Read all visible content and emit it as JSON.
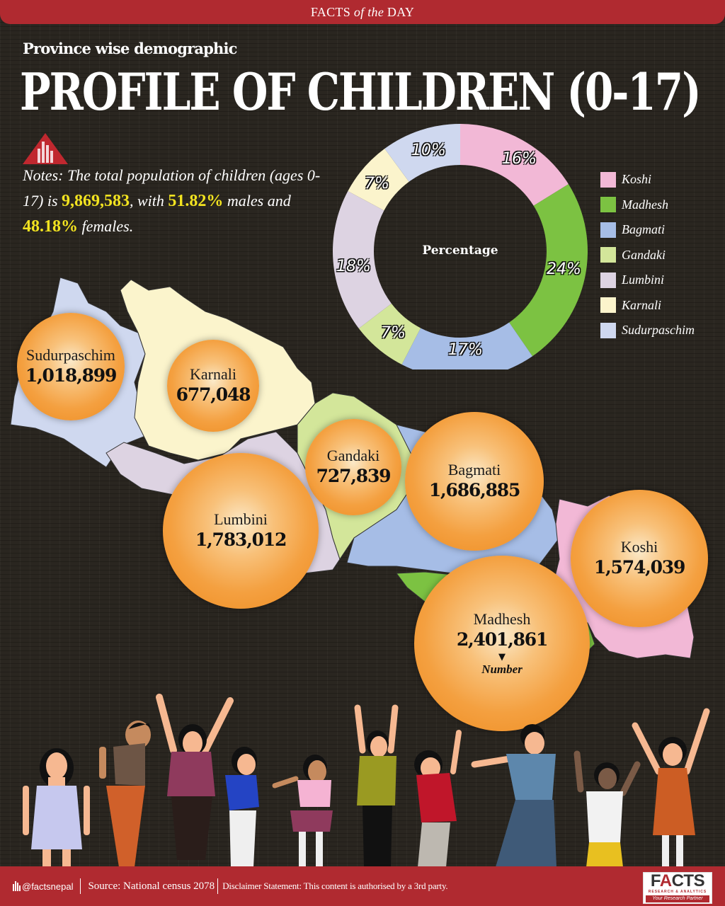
{
  "header": {
    "banner_pre": "FACTS ",
    "banner_italic": "of the",
    "banner_post": " DAY",
    "subtitle": "Province wise demographic",
    "title": "PROFILE OF CHILDREN (0-17)"
  },
  "notes": {
    "text_1": "Notes: The total population of children (ages 0-17) is ",
    "total": "9,869,583",
    "text_2": ", with ",
    "male_pct": "51.82%",
    "text_3": " males and ",
    "female_pct": "48.18%",
    "text_4": " females."
  },
  "donut": {
    "center_label": "Percentage",
    "labels": {
      "koshi": "16%",
      "madhesh": "24%",
      "bagmati": "17%",
      "gandaki": "7%",
      "lumbini": "18%",
      "karnali": "7%",
      "sudurpaschim": "10%"
    }
  },
  "legend": {
    "items": [
      {
        "label": "Koshi",
        "color": "#f2b8d6"
      },
      {
        "label": "Madhesh",
        "color": "#7cc242"
      },
      {
        "label": "Bagmati",
        "color": "#a6bde6"
      },
      {
        "label": "Gandaki",
        "color": "#d3e69a"
      },
      {
        "label": "Lumbini",
        "color": "#ddd3e2"
      },
      {
        "label": "Karnali",
        "color": "#fbf4cc"
      },
      {
        "label": "Sudurpaschim",
        "color": "#cfd8ef"
      }
    ]
  },
  "provinces": {
    "sudurpaschim": {
      "name": "Sudurpaschim",
      "value": "1,018,899"
    },
    "karnali": {
      "name": "Karnali",
      "value": "677,048"
    },
    "gandaki": {
      "name": "Gandaki",
      "value": "727,839"
    },
    "bagmati": {
      "name": "Bagmati",
      "value": "1,686,885"
    },
    "lumbini": {
      "name": "Lumbini",
      "value": "1,783,012"
    },
    "koshi": {
      "name": "Koshi",
      "value": "1,574,039"
    },
    "madhesh": {
      "name": "Madhesh",
      "value": "2,401,861",
      "arrow": "▼",
      "note": "Number"
    }
  },
  "footer": {
    "handle": "@factsnepal",
    "source": "Source: National census 2078",
    "disclaimer": "Disclaimer Statement: This content is authorised by a 3rd party.",
    "logo_pre": "F",
    "logo_a": "A",
    "logo_post": "CTS",
    "logo_sub": "RESEARCH & ANALYTICS",
    "logo_tag": "Your Research Partner"
  },
  "chart_data": [
    {
      "type": "pie",
      "title": "Percentage",
      "categories": [
        "Koshi",
        "Madhesh",
        "Bagmati",
        "Gandaki",
        "Lumbini",
        "Karnali",
        "Sudurpaschim"
      ],
      "values": [
        16,
        24,
        17,
        7,
        18,
        7,
        10
      ],
      "colors": [
        "#f2b8d6",
        "#7cc242",
        "#a6bde6",
        "#d3e69a",
        "#ddd3e2",
        "#fbf4cc",
        "#cfd8ef"
      ],
      "donut": true,
      "legend_position": "right",
      "unit": "%"
    },
    {
      "type": "table",
      "title": "Number of children (0-17) by province",
      "categories": [
        "Sudurpaschim",
        "Karnali",
        "Gandaki",
        "Bagmati",
        "Lumbini",
        "Koshi",
        "Madhesh"
      ],
      "values": [
        1018899,
        677048,
        727839,
        1686885,
        1783012,
        1574039,
        2401861
      ],
      "total": 9869583,
      "male_pct": 51.82,
      "female_pct": 48.18
    }
  ]
}
